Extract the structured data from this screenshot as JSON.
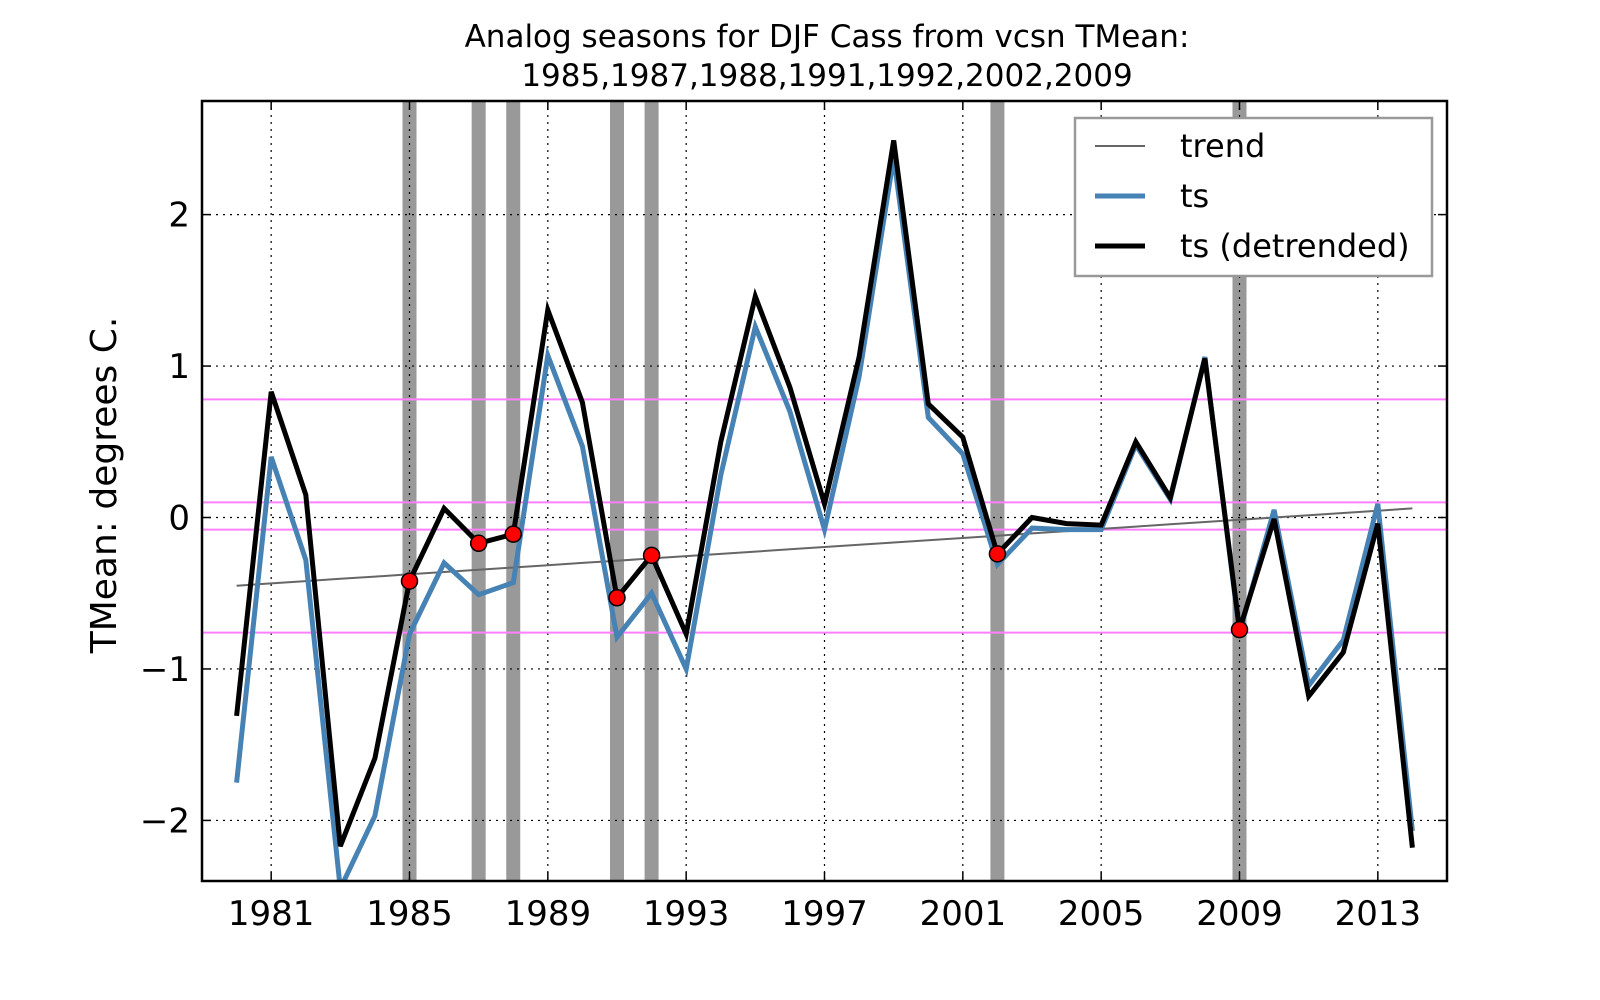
{
  "chart_data": {
    "type": "line",
    "title": "Analog seasons for DJF Cass from vcsn TMean:",
    "subtitle": "1985,1987,1988,1991,1992,2002,2009",
    "xlabel": "",
    "ylabel": "TMean: degrees C.",
    "xlim": [
      1979,
      2015
    ],
    "ylim": [
      -2.4,
      2.75
    ],
    "x_ticks": [
      1981,
      1985,
      1989,
      1993,
      1997,
      2001,
      2005,
      2009,
      2013
    ],
    "y_ticks": [
      -2,
      -1,
      0,
      1,
      2
    ],
    "y_tick_labels": [
      "−2",
      "−1",
      "0",
      "1",
      "2"
    ],
    "grid": true,
    "legend_position": "top-right",
    "x": [
      1980,
      1981,
      1982,
      1983,
      1984,
      1985,
      1986,
      1987,
      1988,
      1989,
      1990,
      1991,
      1992,
      1993,
      1994,
      1995,
      1996,
      1997,
      1998,
      1999,
      2000,
      2001,
      2002,
      2003,
      2004,
      2005,
      2006,
      2007,
      2008,
      2009,
      2010,
      2011,
      2012,
      2013,
      2014
    ],
    "series": [
      {
        "name": "trend",
        "color": "#666666",
        "values": [
          -0.45,
          -0.435,
          -0.42,
          -0.405,
          -0.39,
          -0.375,
          -0.36,
          -0.345,
          -0.33,
          -0.315,
          -0.3,
          -0.285,
          -0.27,
          -0.255,
          -0.24,
          -0.225,
          -0.21,
          -0.195,
          -0.18,
          -0.165,
          -0.15,
          -0.135,
          -0.12,
          -0.105,
          -0.09,
          -0.075,
          -0.06,
          -0.045,
          -0.03,
          -0.015,
          0.0,
          0.015,
          0.03,
          0.045,
          0.06
        ]
      },
      {
        "name": "ts",
        "color": "#4682b4",
        "values": [
          -1.75,
          0.4,
          -0.28,
          -2.45,
          -1.97,
          -0.77,
          -0.3,
          -0.51,
          -0.43,
          1.07,
          0.47,
          -0.79,
          -0.5,
          -1.0,
          0.28,
          1.26,
          0.7,
          -0.08,
          0.93,
          2.38,
          0.66,
          0.42,
          -0.31,
          -0.07,
          -0.08,
          -0.08,
          0.48,
          0.12,
          1.06,
          -0.76,
          0.05,
          -1.11,
          -0.81,
          0.09,
          -2.07
        ]
      },
      {
        "name": "ts (detrended)",
        "color": "#000000",
        "values": [
          -1.31,
          0.83,
          0.15,
          -2.17,
          -1.59,
          -0.42,
          0.06,
          -0.17,
          -0.11,
          1.37,
          0.76,
          -0.53,
          -0.25,
          -0.77,
          0.5,
          1.46,
          0.86,
          0.09,
          1.06,
          2.49,
          0.75,
          0.53,
          -0.24,
          0.0,
          -0.04,
          -0.05,
          0.5,
          0.13,
          1.05,
          -0.74,
          -0.01,
          -1.18,
          -0.89,
          -0.04,
          -2.18
        ]
      }
    ],
    "analog_years": [
      1985,
      1987,
      1988,
      1991,
      1992,
      2002,
      2009
    ],
    "analog_values": [
      -0.42,
      -0.17,
      -0.11,
      -0.53,
      -0.25,
      -0.24,
      -0.74
    ],
    "threshold_lines": [
      0.78,
      0.1,
      -0.08,
      -0.76
    ],
    "colors": {
      "analog_band": "#999999",
      "threshold": "#ff7fff",
      "marker_fill": "#ff0000",
      "grid": "#000000"
    }
  }
}
